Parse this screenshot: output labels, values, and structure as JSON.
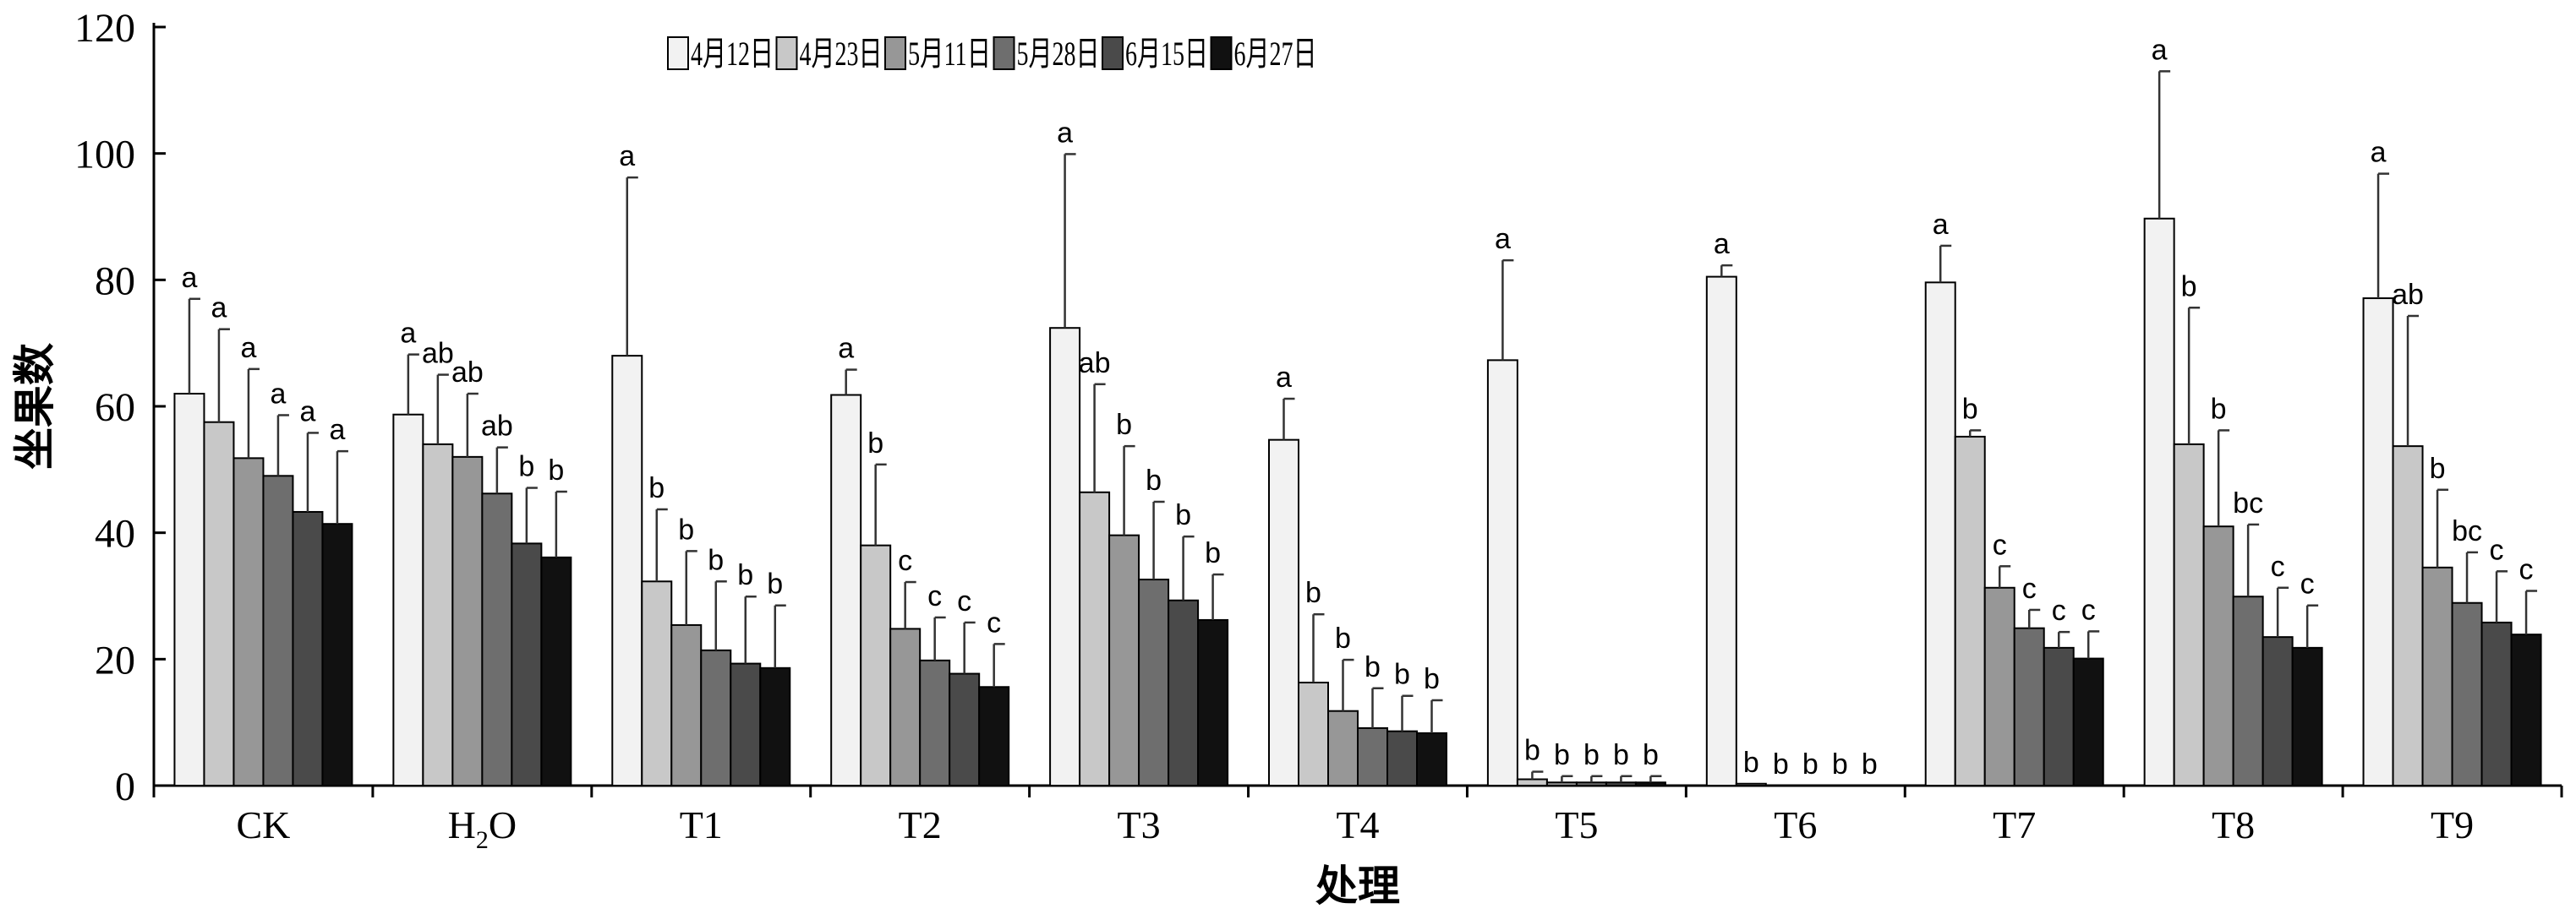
{
  "chart_data": {
    "type": "bar",
    "xlabel": "处理",
    "ylabel": "坐果数",
    "ylim": [
      0,
      120
    ],
    "yticks": [
      0,
      20,
      40,
      60,
      80,
      100,
      120
    ],
    "legend_placement": "top-center",
    "categories": [
      "CK",
      "H2O",
      "T1",
      "T2",
      "T3",
      "T4",
      "T5",
      "T6",
      "T7",
      "T8",
      "T9"
    ],
    "series": [
      {
        "name": "4月12日",
        "color": "#f2f2f2",
        "values": [
          62,
          58.7,
          68,
          61.8,
          72.4,
          54.7,
          67.3,
          80.5,
          79.6,
          89.7,
          77.1
        ],
        "errors": [
          15,
          9.5,
          28.2,
          4,
          27.5,
          6.5,
          15.8,
          1.8,
          5.8,
          23.3,
          19.7
        ],
        "sig": [
          "a",
          "a",
          "a",
          "a",
          "a",
          "a",
          "a",
          "a",
          "a",
          "a",
          "a"
        ]
      },
      {
        "name": "4月23日",
        "color": "#c8c8c8",
        "values": [
          57.5,
          54,
          32.3,
          38,
          46.4,
          16.3,
          1,
          0.3,
          55.2,
          54,
          53.7
        ],
        "errors": [
          14.7,
          11,
          11.4,
          12.8,
          17.1,
          10.8,
          1.2,
          0,
          1,
          21.6,
          20.6
        ],
        "sig": [
          "a",
          "ab",
          "b",
          "b",
          "ab",
          "b",
          "b",
          "b",
          "b",
          "b",
          "ab"
        ]
      },
      {
        "name": "5月11日",
        "color": "#979797",
        "values": [
          51.8,
          52,
          25.4,
          24.8,
          39.6,
          11.8,
          0.5,
          0,
          31.3,
          41,
          34.5
        ],
        "errors": [
          14.1,
          10,
          11.7,
          7.4,
          14.1,
          8.1,
          1,
          0,
          3.4,
          15.2,
          12.3
        ],
        "sig": [
          "a",
          "ab",
          "b",
          "c",
          "b",
          "b",
          "b",
          "b",
          "c",
          "b",
          "b"
        ]
      },
      {
        "name": "5月28日",
        "color": "#6e6e6e",
        "values": [
          49,
          46.2,
          21.4,
          19.8,
          32.6,
          9.1,
          0.5,
          0,
          24.9,
          29.9,
          28.9
        ],
        "errors": [
          9.6,
          7.3,
          10.9,
          6.8,
          12.3,
          6.3,
          1,
          0,
          2.9,
          11.4,
          8
        ],
        "sig": [
          "a",
          "ab",
          "b",
          "c",
          "b",
          "b",
          "b",
          "b",
          "c",
          "bc",
          "bc"
        ]
      },
      {
        "name": "6月15日",
        "color": "#4a4a4a",
        "values": [
          43.3,
          38.3,
          19.3,
          17.7,
          29.3,
          8.6,
          0.5,
          0,
          21.8,
          23.5,
          25.8
        ],
        "errors": [
          12.5,
          8.8,
          10.6,
          8.1,
          10.1,
          5.6,
          1,
          0,
          2.5,
          7.8,
          8.1
        ],
        "sig": [
          "a",
          "b",
          "b",
          "c",
          "b",
          "b",
          "b",
          "b",
          "c",
          "c",
          "c"
        ]
      },
      {
        "name": "6月27日",
        "color": "#111111",
        "values": [
          41.4,
          36.1,
          18.6,
          15.6,
          26.2,
          8.3,
          0.5,
          0,
          20.1,
          21.8,
          23.9
        ],
        "errors": [
          11.5,
          10.4,
          9.9,
          6.8,
          7.2,
          5.2,
          1,
          0,
          4.3,
          6.7,
          6.9
        ],
        "sig": [
          "a",
          "b",
          "b",
          "c",
          "b",
          "b",
          "b",
          "b",
          "c",
          "c",
          "c"
        ]
      }
    ]
  }
}
